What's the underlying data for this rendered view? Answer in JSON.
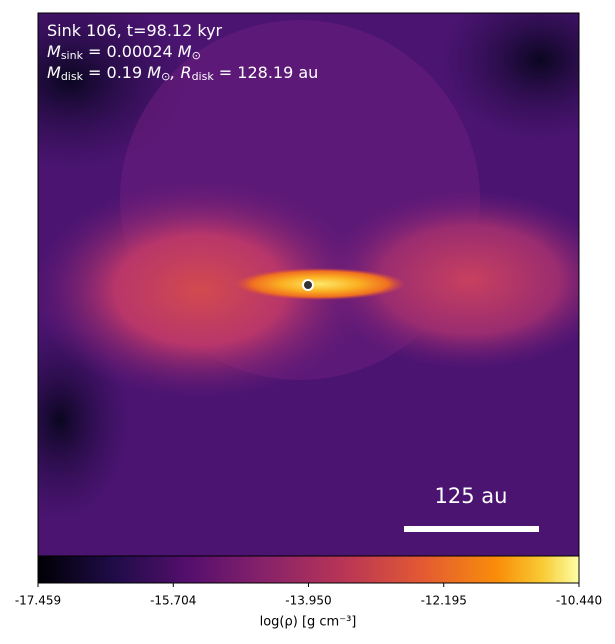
{
  "chart_data": {
    "type": "image",
    "annotations": [
      [
        {
          "text": "Sink 106, t=98.12 kyr"
        }
      ],
      [
        {
          "text": "M"
        },
        {
          "sub": "sink"
        },
        {
          "text": " = 0.00024 "
        },
        {
          "text": "M"
        },
        {
          "sub": "⊙"
        }
      ],
      [
        {
          "text": "M"
        },
        {
          "sub": "disk"
        },
        {
          "text": " = 0.19 "
        },
        {
          "text": "M"
        },
        {
          "sub": "⊙"
        },
        {
          "text": ", R"
        },
        {
          "sub": "disk"
        },
        {
          "text": " = 128.19 au"
        }
      ]
    ],
    "scale_bar": "125 au",
    "colorbar": {
      "label": "log(ρ) [g cm⁻³]",
      "lim": [
        -17.459,
        -10.44
      ],
      "ticks": [
        -17.459,
        -15.704,
        {
          "value": -13.95,
          "label": "-13.950"
        },
        -12.195,
        {
          "value": -10.44,
          "label": "-10.440"
        }
      ]
    }
  }
}
